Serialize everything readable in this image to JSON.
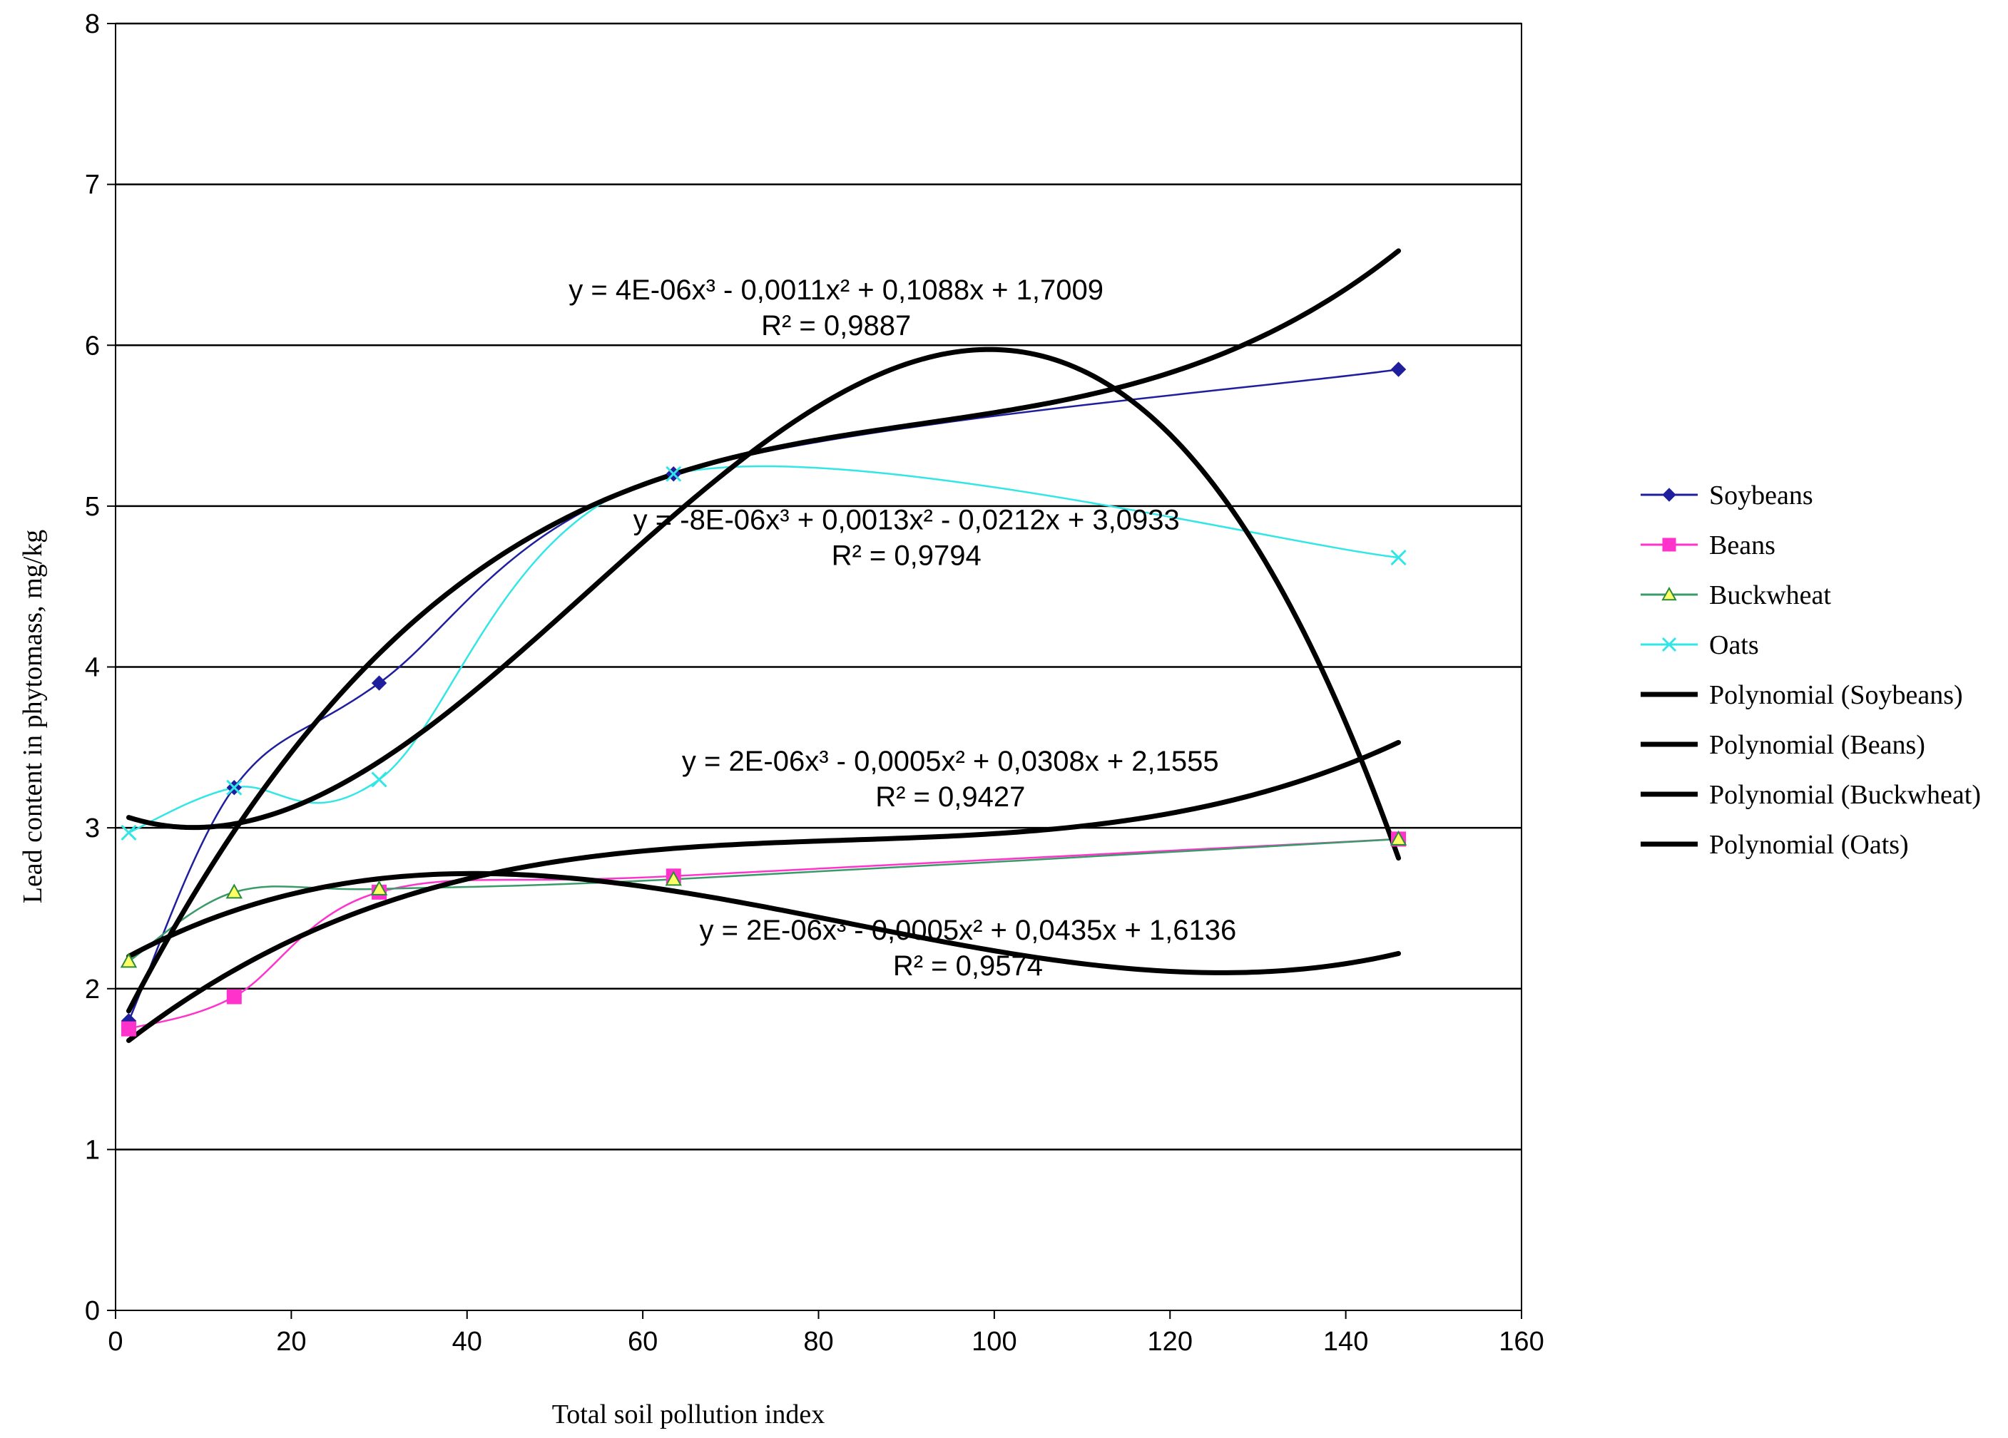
{
  "chart_data": {
    "type": "line",
    "title": "",
    "xlabel": "Total soil pollution index",
    "ylabel": "Lead content in phytomass, mg/kg",
    "xlim": [
      0,
      160
    ],
    "ylim": [
      0,
      8
    ],
    "xticks": [
      0,
      20,
      40,
      60,
      80,
      100,
      120,
      140,
      160
    ],
    "yticks": [
      0,
      1,
      2,
      3,
      4,
      5,
      6,
      7,
      8
    ],
    "grid": "horizontal",
    "legend_position": "right",
    "x": [
      1.5,
      13.5,
      30,
      63.5,
      146
    ],
    "series": [
      {
        "name": "Soybeans",
        "marker": "diamond",
        "color": "#1f1f9e",
        "values": [
          1.8,
          3.25,
          3.9,
          5.2,
          5.85
        ]
      },
      {
        "name": "Beans",
        "marker": "square",
        "color": "#ff33cc",
        "values": [
          1.75,
          1.95,
          2.6,
          2.7,
          2.93
        ]
      },
      {
        "name": "Buckwheat",
        "marker": "triangle",
        "color": "#3a9a6a",
        "values": [
          2.17,
          2.6,
          2.62,
          2.68,
          2.93
        ]
      },
      {
        "name": "Oats",
        "marker": "x",
        "color": "#33e6e6",
        "values": [
          2.97,
          3.25,
          3.3,
          5.2,
          4.68
        ]
      }
    ],
    "trendlines": [
      {
        "name": "Polynomial (Soybeans)",
        "coef": [
          4e-06,
          -0.0011,
          0.1088,
          1.7009
        ],
        "equation": "y = 4E-06x³ - 0,0011x² + 0,1088x + 1,7009",
        "r2": "R² = 0,9887"
      },
      {
        "name": "Polynomial (Beans)",
        "coef": [
          2e-06,
          -0.0005,
          0.0435,
          1.6136
        ],
        "equation": "y = 2E-06x³ - 0,0005x² + 0,0435x + 1,6136",
        "r2": "R² = 0,9574"
      },
      {
        "name": "Polynomial (Buckwheat)",
        "coef": [
          2e-06,
          -0.0005,
          0.0308,
          2.1555
        ],
        "equation": "y = 2E-06x³ - 0,0005x² + 0,0308x + 2,1555",
        "r2": "R² = 0,9427"
      },
      {
        "name": "Polynomial (Oats)",
        "coef": [
          -8e-06,
          0.0013,
          -0.0212,
          3.0933
        ],
        "equation": "y = -8E-06x³ + 0,0013x² - 0,0212x + 3,0933",
        "r2": "R² = 0,9794"
      }
    ]
  }
}
